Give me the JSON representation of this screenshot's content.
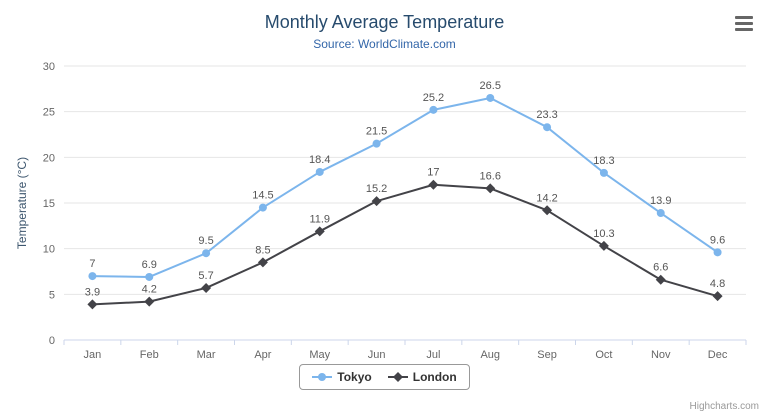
{
  "header": {
    "title": "Monthly Average Temperature",
    "subtitle": "Source: WorldClimate.com"
  },
  "menu": {
    "icon_name": "hamburger-menu-icon"
  },
  "credits": {
    "label": "Highcharts.com"
  },
  "colors": {
    "tokyo": "#7cb5ec",
    "london": "#434348",
    "grid": "#e6e6e6",
    "axis_line": "#ccd6eb",
    "tick_text": "#666666",
    "data_label": "#555555",
    "title": "#274b6d",
    "subtitle": "#3366a9",
    "legend_border": "#999999",
    "credits_text": "#999999"
  },
  "chart_data": {
    "type": "line",
    "title": "Monthly Average Temperature",
    "subtitle": "Source: WorldClimate.com",
    "xlabel": "",
    "ylabel": "Temperature (°C)",
    "ylim": [
      0,
      30
    ],
    "ytick_step": 5,
    "grid": true,
    "legend_position": "bottom",
    "categories": [
      "Jan",
      "Feb",
      "Mar",
      "Apr",
      "May",
      "Jun",
      "Jul",
      "Aug",
      "Sep",
      "Oct",
      "Nov",
      "Dec"
    ],
    "series": [
      {
        "name": "Tokyo",
        "color": "#7cb5ec",
        "marker": "circle",
        "values": [
          7,
          6.9,
          9.5,
          14.5,
          18.4,
          21.5,
          25.2,
          26.5,
          23.3,
          18.3,
          13.9,
          9.6
        ]
      },
      {
        "name": "London",
        "color": "#434348",
        "marker": "diamond",
        "values": [
          3.9,
          4.2,
          5.7,
          8.5,
          11.9,
          15.2,
          17,
          16.6,
          14.2,
          10.3,
          6.6,
          4.8
        ]
      }
    ]
  }
}
